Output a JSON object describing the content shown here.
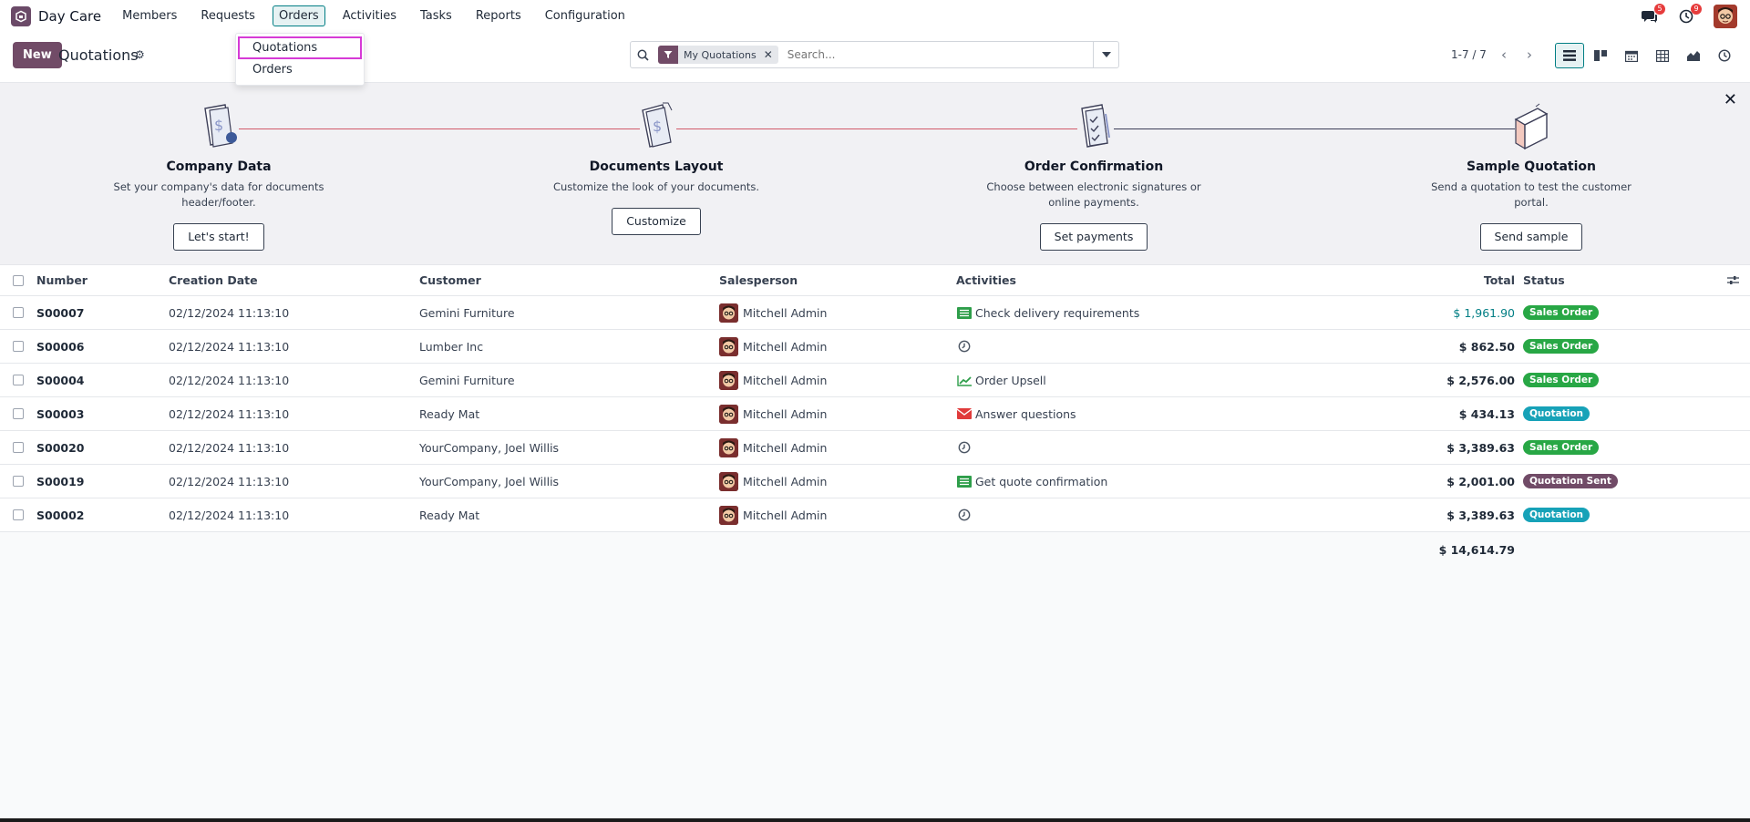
{
  "app": {
    "name": "Day Care"
  },
  "menu": [
    "Members",
    "Requests",
    "Orders",
    "Activities",
    "Tasks",
    "Reports",
    "Configuration"
  ],
  "system": {
    "messages_count": "5",
    "activities_count": "9"
  },
  "dropdown": [
    "Quotations",
    "Orders"
  ],
  "control": {
    "new_label": "New",
    "title": "Quotations",
    "facet": "My Quotations",
    "search_placeholder": "Search...",
    "pager": "1-7 / 7"
  },
  "onboarding": [
    {
      "title": "Company Data",
      "desc": "Set your company's data for documents header/footer.",
      "button": "Let's start!"
    },
    {
      "title": "Documents Layout",
      "desc": "Customize the look of your documents.",
      "button": "Customize"
    },
    {
      "title": "Order Confirmation",
      "desc": "Choose between electronic signatures or online payments.",
      "button": "Set payments"
    },
    {
      "title": "Sample Quotation",
      "desc": "Send a quotation to test the customer portal.",
      "button": "Send sample"
    }
  ],
  "table": {
    "headers": {
      "number": "Number",
      "date": "Creation Date",
      "customer": "Customer",
      "salesperson": "Salesperson",
      "activities": "Activities",
      "total": "Total",
      "status": "Status"
    },
    "rows": [
      {
        "number": "S00007",
        "date": "02/12/2024 11:13:10",
        "customer": "Gemini Furniture",
        "salesperson": "Mitchell Admin",
        "activity": "Check delivery requirements",
        "activity_icon": "list-icon",
        "total": "$ 1,961.90",
        "status": "Sales Order"
      },
      {
        "number": "S00006",
        "date": "02/12/2024 11:13:10",
        "customer": "Lumber Inc",
        "salesperson": "Mitchell Admin",
        "activity": "",
        "activity_icon": "clock-icon",
        "total": "$ 862.50",
        "status": "Sales Order"
      },
      {
        "number": "S00004",
        "date": "02/12/2024 11:13:10",
        "customer": "Gemini Furniture",
        "salesperson": "Mitchell Admin",
        "activity": "Order Upsell",
        "activity_icon": "chart-icon",
        "total": "$ 2,576.00",
        "status": "Sales Order"
      },
      {
        "number": "S00003",
        "date": "02/12/2024 11:13:10",
        "customer": "Ready Mat",
        "salesperson": "Mitchell Admin",
        "activity": "Answer questions",
        "activity_icon": "envelope-icon",
        "total": "$ 434.13",
        "status": "Quotation"
      },
      {
        "number": "S00020",
        "date": "02/12/2024 11:13:10",
        "customer": "YourCompany, Joel Willis",
        "salesperson": "Mitchell Admin",
        "activity": "",
        "activity_icon": "clock-icon",
        "total": "$ 3,389.63",
        "status": "Sales Order"
      },
      {
        "number": "S00019",
        "date": "02/12/2024 11:13:10",
        "customer": "YourCompany, Joel Willis",
        "salesperson": "Mitchell Admin",
        "activity": "Get quote confirmation",
        "activity_icon": "list-icon",
        "total": "$ 2,001.00",
        "status": "Quotation Sent"
      },
      {
        "number": "S00002",
        "date": "02/12/2024 11:13:10",
        "customer": "Ready Mat",
        "salesperson": "Mitchell Admin",
        "activity": "",
        "activity_icon": "clock-icon",
        "total": "$ 3,389.63",
        "status": "Quotation"
      }
    ],
    "grand_total": "$ 14,614.79"
  },
  "colors": {
    "brand": "#714b67",
    "accent": "#017e84",
    "sales_order": "#28a745",
    "quotation": "#17a2b8",
    "quotation_sent": "#714b67",
    "highlight_total": "#017e84"
  }
}
